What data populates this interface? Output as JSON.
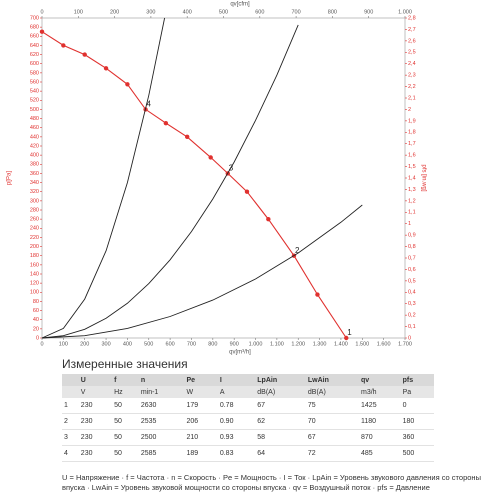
{
  "chart_data": {
    "type": "line",
    "x2label": "qv[cfm]",
    "xlabel": "qv[m³/h]",
    "ylabel": "p[Pa]",
    "y2label": "pfs [in.wg]",
    "xlim": [
      0,
      1700
    ],
    "xticks": [
      0,
      100,
      200,
      300,
      400,
      500,
      600,
      700,
      800,
      900,
      {
        "value": 1000,
        "label": "1.000"
      },
      {
        "value": 1100,
        "label": "1.100"
      },
      {
        "value": 1200,
        "label": "1.200"
      },
      {
        "value": 1300,
        "label": "1.300"
      },
      {
        "value": 1400,
        "label": "1.400"
      },
      {
        "value": 1500,
        "label": "1.500"
      },
      {
        "value": 1600,
        "label": "1.600"
      },
      {
        "value": 1700,
        "label": "1.700"
      }
    ],
    "x2lim": [
      0,
      1000
    ],
    "x2ticks": [
      0,
      100,
      200,
      300,
      400,
      500,
      600,
      700,
      800,
      900,
      {
        "value": 1000,
        "label": "1.000"
      }
    ],
    "ylim": [
      0,
      700
    ],
    "yticks": [
      0,
      20,
      40,
      60,
      80,
      100,
      120,
      140,
      160,
      180,
      200,
      220,
      240,
      260,
      280,
      300,
      320,
      340,
      360,
      380,
      400,
      420,
      440,
      460,
      480,
      500,
      520,
      540,
      560,
      580,
      600,
      620,
      640,
      660,
      680,
      700
    ],
    "y2lim": [
      0,
      2.8
    ],
    "y2ticks": [
      0,
      {
        "value": 0.1,
        "label": "0,1"
      },
      {
        "value": 0.2,
        "label": "0,2"
      },
      {
        "value": 0.3,
        "label": "0,3"
      },
      {
        "value": 0.4,
        "label": "0,4"
      },
      {
        "value": 0.5,
        "label": "0,5"
      },
      {
        "value": 0.6,
        "label": "0,6"
      },
      {
        "value": 0.7,
        "label": "0,7"
      },
      {
        "value": 0.8,
        "label": "0,8"
      },
      {
        "value": 0.9,
        "label": "0,9"
      },
      1,
      {
        "value": 1.1,
        "label": "1,1"
      },
      {
        "value": 1.2,
        "label": "1,2"
      },
      {
        "value": 1.3,
        "label": "1,3"
      },
      {
        "value": 1.4,
        "label": "1,4"
      },
      {
        "value": 1.5,
        "label": "1,5"
      },
      {
        "value": 1.6,
        "label": "1,6"
      },
      {
        "value": 1.7,
        "label": "1,7"
      },
      {
        "value": 1.8,
        "label": "1,8"
      },
      {
        "value": 1.9,
        "label": "1,9"
      },
      2,
      {
        "value": 2.1,
        "label": "2,1"
      },
      {
        "value": 2.2,
        "label": "2,2"
      },
      {
        "value": 2.3,
        "label": "2,3"
      },
      {
        "value": 2.4,
        "label": "2,4"
      },
      {
        "value": 2.5,
        "label": "2,5"
      },
      {
        "value": 2.6,
        "label": "2,6"
      },
      {
        "value": 2.7,
        "label": "2,7"
      },
      {
        "value": 2.8,
        "label": "2,8"
      }
    ],
    "series": [
      {
        "color": "#e0312f",
        "markers": true,
        "x": [
          0,
          100,
          200,
          300,
          400,
          485,
          580,
          680,
          790,
          870,
          960,
          1060,
          1180,
          1290,
          1425
        ],
        "values": [
          670,
          640,
          620,
          590,
          555,
          500,
          470,
          440,
          395,
          360,
          320,
          260,
          180,
          95,
          0
        ]
      },
      {
        "color": "#222222",
        "markers": false,
        "x": [
          0,
          100,
          200,
          300,
          400,
          500,
          574
        ],
        "values": [
          0,
          21,
          85,
          191,
          340,
          531,
          700
        ]
      },
      {
        "color": "#222222",
        "markers": false,
        "x": [
          0,
          100,
          200,
          300,
          400,
          500,
          600,
          700,
          800,
          900,
          1000,
          1100,
          1200
        ],
        "values": [
          0,
          5,
          19,
          43,
          76,
          119,
          171,
          233,
          304,
          385,
          476,
          575,
          685
        ]
      },
      {
        "color": "#222222",
        "markers": false,
        "x": [
          0,
          200,
          400,
          600,
          800,
          1000,
          1200,
          1400,
          1500
        ],
        "values": [
          0,
          5,
          21,
          47,
          83,
          129,
          186,
          253,
          291
        ]
      }
    ],
    "points": [
      {
        "label": "1",
        "x": 1425,
        "y": 0
      },
      {
        "label": "2",
        "x": 1180,
        "y": 180
      },
      {
        "label": "3",
        "x": 870,
        "y": 360
      },
      {
        "label": "4",
        "x": 485,
        "y": 500
      }
    ]
  },
  "table": {
    "title": "Измеренные значения",
    "header": [
      "",
      "U",
      "f",
      "n",
      "Pe",
      "I",
      "LpAin",
      "LwAin",
      "qv",
      "pfs"
    ],
    "units": [
      "",
      "V",
      "Hz",
      "min-1",
      "W",
      "A",
      "dB(A)",
      "dB(A)",
      "m3/h",
      "Pa"
    ],
    "rows": [
      [
        "1",
        "230",
        "50",
        "2630",
        "179",
        "0.78",
        "67",
        "75",
        "1425",
        "0"
      ],
      [
        "2",
        "230",
        "50",
        "2535",
        "206",
        "0.90",
        "62",
        "70",
        "1180",
        "180"
      ],
      [
        "3",
        "230",
        "50",
        "2500",
        "210",
        "0.93",
        "58",
        "67",
        "870",
        "360"
      ],
      [
        "4",
        "230",
        "50",
        "2585",
        "189",
        "0.83",
        "64",
        "72",
        "485",
        "500"
      ]
    ],
    "footnote": "U = Напряжение · f = Частота · n = Скорость · Pe = Мощность · I = Ток · LpAin = Уровень звукового давления со стороны впуска · LwAin = Уровень звуковой мощности со стороны впуска · qv = Воздушный поток · pfs = Давление"
  }
}
